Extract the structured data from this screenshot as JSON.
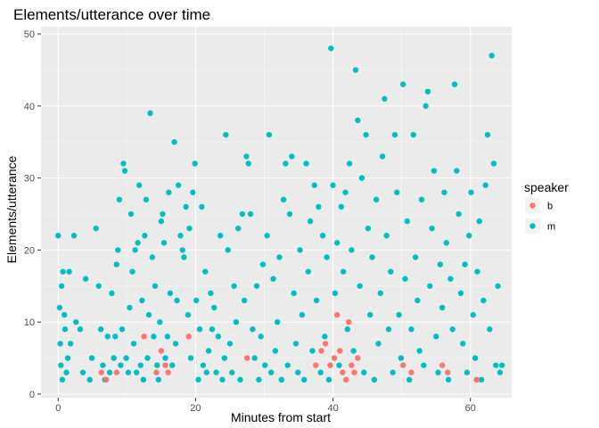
{
  "chart_data": {
    "type": "scatter",
    "title": "Elements/utterance over time",
    "xlabel": "Minutes from start",
    "ylabel": "Elements/utterance",
    "xlim": [
      -2.5,
      66
    ],
    "ylim": [
      -0.5,
      51
    ],
    "xticks": [
      0,
      20,
      40,
      60
    ],
    "yticks": [
      0,
      10,
      20,
      30,
      40,
      50
    ],
    "grid": true,
    "legend": {
      "title": "speaker",
      "position": "right"
    },
    "series": [
      {
        "name": "b",
        "color": "#F8766D",
        "points": [
          [
            6.3,
            3
          ],
          [
            7.0,
            2
          ],
          [
            8.5,
            3
          ],
          [
            12.5,
            8
          ],
          [
            14.3,
            3
          ],
          [
            15.0,
            6
          ],
          [
            15.6,
            4
          ],
          [
            16.0,
            3
          ],
          [
            19.0,
            8
          ],
          [
            27.5,
            5
          ],
          [
            37.5,
            4
          ],
          [
            38.3,
            6
          ],
          [
            38.9,
            7
          ],
          [
            39.6,
            4
          ],
          [
            40.2,
            5
          ],
          [
            40.6,
            11
          ],
          [
            41.0,
            6
          ],
          [
            41.4,
            3
          ],
          [
            41.9,
            2
          ],
          [
            42.3,
            10
          ],
          [
            42.7,
            4
          ],
          [
            43.1,
            3
          ],
          [
            43.6,
            5
          ],
          [
            50.2,
            4
          ],
          [
            51.4,
            3
          ],
          [
            55.9,
            4
          ],
          [
            56.7,
            3
          ],
          [
            60.9,
            2
          ]
        ]
      },
      {
        "name": "m",
        "color": "#00BFC4",
        "points": [
          [
            0.0,
            22
          ],
          [
            0.2,
            12
          ],
          [
            0.3,
            7
          ],
          [
            0.4,
            4
          ],
          [
            0.5,
            15
          ],
          [
            0.6,
            2
          ],
          [
            0.7,
            17
          ],
          [
            0.9,
            11
          ],
          [
            1.0,
            9
          ],
          [
            1.2,
            3
          ],
          [
            1.4,
            5
          ],
          [
            1.6,
            17
          ],
          [
            1.8,
            7
          ],
          [
            2.3,
            22
          ],
          [
            2.6,
            10
          ],
          [
            3.2,
            9
          ],
          [
            3.6,
            3
          ],
          [
            4.0,
            16
          ],
          [
            4.6,
            2
          ],
          [
            4.9,
            5
          ],
          [
            5.5,
            23
          ],
          [
            5.9,
            15
          ],
          [
            6.2,
            9
          ],
          [
            6.5,
            4
          ],
          [
            6.8,
            2
          ],
          [
            7.2,
            8
          ],
          [
            7.5,
            3
          ],
          [
            7.8,
            14
          ],
          [
            8.1,
            5
          ],
          [
            8.3,
            8
          ],
          [
            8.5,
            18
          ],
          [
            8.7,
            20
          ],
          [
            8.9,
            27
          ],
          [
            9.1,
            4
          ],
          [
            9.3,
            9
          ],
          [
            9.5,
            32
          ],
          [
            9.7,
            31
          ],
          [
            9.9,
            5
          ],
          [
            10.2,
            3
          ],
          [
            10.4,
            12
          ],
          [
            10.6,
            25
          ],
          [
            10.8,
            17
          ],
          [
            11.0,
            7
          ],
          [
            11.2,
            20
          ],
          [
            11.4,
            3
          ],
          [
            11.6,
            21
          ],
          [
            11.8,
            29
          ],
          [
            12.0,
            4
          ],
          [
            12.2,
            13
          ],
          [
            12.4,
            2
          ],
          [
            12.6,
            22
          ],
          [
            12.8,
            27
          ],
          [
            13.0,
            5
          ],
          [
            13.2,
            11
          ],
          [
            13.4,
            39
          ],
          [
            13.7,
            19
          ],
          [
            13.9,
            8
          ],
          [
            14.1,
            15
          ],
          [
            14.4,
            4
          ],
          [
            14.6,
            2
          ],
          [
            14.8,
            10
          ],
          [
            15.0,
            24
          ],
          [
            15.2,
            25
          ],
          [
            15.4,
            21
          ],
          [
            15.6,
            5
          ],
          [
            15.9,
            8
          ],
          [
            16.1,
            28
          ],
          [
            16.3,
            14
          ],
          [
            16.6,
            4
          ],
          [
            16.9,
            35
          ],
          [
            17.1,
            7
          ],
          [
            17.3,
            13
          ],
          [
            17.5,
            29
          ],
          [
            17.8,
            22
          ],
          [
            18.1,
            20
          ],
          [
            18.3,
            19
          ],
          [
            18.6,
            26
          ],
          [
            18.9,
            11
          ],
          [
            19.1,
            23
          ],
          [
            19.3,
            5
          ],
          [
            19.6,
            28
          ],
          [
            19.9,
            32
          ],
          [
            20.1,
            13
          ],
          [
            20.4,
            2
          ],
          [
            20.6,
            9
          ],
          [
            20.9,
            26
          ],
          [
            21.1,
            4
          ],
          [
            21.4,
            17
          ],
          [
            21.6,
            3
          ],
          [
            21.9,
            6
          ],
          [
            22.2,
            14
          ],
          [
            22.4,
            9
          ],
          [
            22.7,
            12
          ],
          [
            23.0,
            3
          ],
          [
            23.3,
            8
          ],
          [
            23.6,
            22
          ],
          [
            23.9,
            2
          ],
          [
            24.2,
            5
          ],
          [
            24.4,
            36
          ],
          [
            24.7,
            20
          ],
          [
            25.0,
            7
          ],
          [
            25.3,
            3
          ],
          [
            25.6,
            15
          ],
          [
            25.9,
            10
          ],
          [
            26.2,
            23
          ],
          [
            26.5,
            2
          ],
          [
            26.8,
            25
          ],
          [
            27.1,
            13
          ],
          [
            27.4,
            33
          ],
          [
            27.7,
            32
          ],
          [
            28.0,
            25
          ],
          [
            28.3,
            9
          ],
          [
            28.6,
            5
          ],
          [
            28.9,
            15
          ],
          [
            29.2,
            2
          ],
          [
            29.5,
            8
          ],
          [
            29.8,
            18
          ],
          [
            30.1,
            4
          ],
          [
            30.4,
            22
          ],
          [
            30.7,
            36
          ],
          [
            31.0,
            3
          ],
          [
            31.3,
            16
          ],
          [
            31.6,
            6
          ],
          [
            31.9,
            10
          ],
          [
            32.2,
            19
          ],
          [
            32.5,
            2
          ],
          [
            32.8,
            27
          ],
          [
            33.1,
            32
          ],
          [
            33.4,
            4
          ],
          [
            33.7,
            25
          ],
          [
            34.0,
            33
          ],
          [
            34.3,
            14
          ],
          [
            34.6,
            7
          ],
          [
            34.9,
            3
          ],
          [
            35.2,
            20
          ],
          [
            35.5,
            11
          ],
          [
            35.8,
            2
          ],
          [
            36.1,
            32
          ],
          [
            36.4,
            17
          ],
          [
            36.7,
            24
          ],
          [
            37.0,
            6
          ],
          [
            37.3,
            29
          ],
          [
            37.6,
            13
          ],
          [
            37.9,
            26
          ],
          [
            38.2,
            3
          ],
          [
            38.5,
            22
          ],
          [
            38.8,
            8
          ],
          [
            39.1,
            19
          ],
          [
            39.4,
            2
          ],
          [
            39.7,
            48
          ],
          [
            40.0,
            29
          ],
          [
            40.3,
            14
          ],
          [
            40.6,
            21
          ],
          [
            40.9,
            4
          ],
          [
            41.2,
            26
          ],
          [
            41.5,
            17
          ],
          [
            41.8,
            28
          ],
          [
            42.1,
            9
          ],
          [
            42.4,
            32
          ],
          [
            42.7,
            20
          ],
          [
            43.0,
            6
          ],
          [
            43.3,
            45
          ],
          [
            43.6,
            38
          ],
          [
            43.9,
            15
          ],
          [
            44.2,
            30
          ],
          [
            44.5,
            3
          ],
          [
            44.8,
            36
          ],
          [
            45.1,
            23
          ],
          [
            45.4,
            11
          ],
          [
            45.7,
            19
          ],
          [
            46.0,
            2
          ],
          [
            46.3,
            27
          ],
          [
            46.6,
            7
          ],
          [
            46.9,
            14
          ],
          [
            47.2,
            33
          ],
          [
            47.5,
            41
          ],
          [
            47.8,
            22
          ],
          [
            48.1,
            9
          ],
          [
            48.4,
            17
          ],
          [
            48.7,
            3
          ],
          [
            49.0,
            36
          ],
          [
            49.3,
            28
          ],
          [
            49.6,
            11
          ],
          [
            49.9,
            5
          ],
          [
            50.2,
            43
          ],
          [
            50.5,
            16
          ],
          [
            50.8,
            24
          ],
          [
            51.1,
            2
          ],
          [
            51.4,
            9
          ],
          [
            51.7,
            36
          ],
          [
            52.0,
            19
          ],
          [
            52.3,
            13
          ],
          [
            52.6,
            6
          ],
          [
            52.9,
            27
          ],
          [
            53.2,
            4
          ],
          [
            53.5,
            40
          ],
          [
            53.8,
            42
          ],
          [
            54.1,
            15
          ],
          [
            54.4,
            23
          ],
          [
            54.7,
            31
          ],
          [
            55.0,
            8
          ],
          [
            55.3,
            3
          ],
          [
            55.6,
            18
          ],
          [
            55.9,
            12
          ],
          [
            56.2,
            28
          ],
          [
            56.5,
            21
          ],
          [
            56.8,
            2
          ],
          [
            57.1,
            16
          ],
          [
            57.4,
            9
          ],
          [
            57.7,
            43
          ],
          [
            58.0,
            31
          ],
          [
            58.3,
            25
          ],
          [
            58.6,
            14
          ],
          [
            58.9,
            7
          ],
          [
            59.2,
            18
          ],
          [
            59.5,
            3
          ],
          [
            59.8,
            22
          ],
          [
            60.1,
            28
          ],
          [
            60.4,
            11
          ],
          [
            60.7,
            5
          ],
          [
            61.0,
            17
          ],
          [
            61.3,
            24
          ],
          [
            61.6,
            2
          ],
          [
            61.9,
            13
          ],
          [
            62.2,
            29
          ],
          [
            62.5,
            36
          ],
          [
            62.8,
            9
          ],
          [
            63.1,
            47
          ],
          [
            63.4,
            32
          ],
          [
            63.7,
            4
          ],
          [
            64.0,
            15
          ],
          [
            64.3,
            3
          ],
          [
            64.6,
            4
          ]
        ]
      }
    ]
  }
}
